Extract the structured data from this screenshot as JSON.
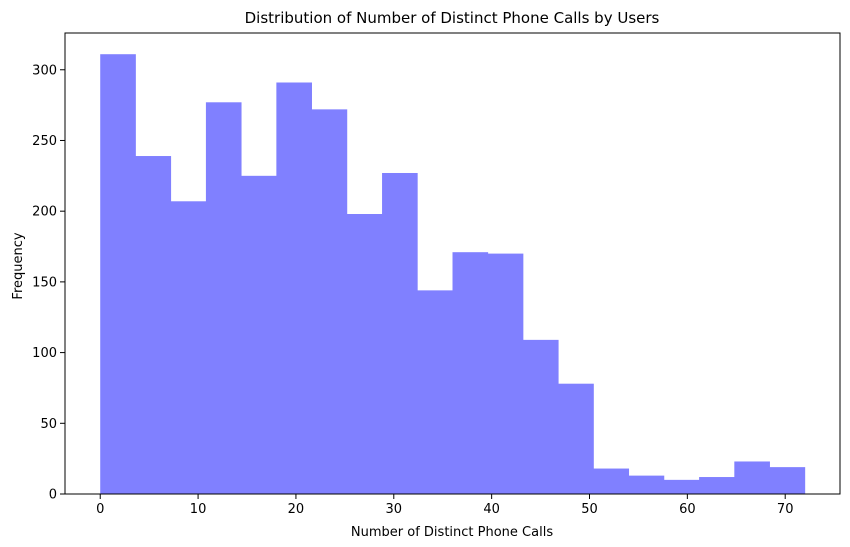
{
  "chart_data": {
    "type": "bar",
    "title": "Distribution of Number of Distinct Phone Calls by Users",
    "xlabel": "Number of Distinct Phone Calls",
    "ylabel": "Frequency",
    "xlim": [
      -3.6,
      75.6
    ],
    "ylim": [
      0,
      326
    ],
    "xticks": [
      0,
      10,
      20,
      30,
      40,
      50,
      60,
      70
    ],
    "yticks": [
      0,
      50,
      100,
      150,
      200,
      250,
      300
    ],
    "bin_edges": [
      0,
      3.6,
      7.2,
      10.8,
      14.4,
      18,
      21.6,
      25.2,
      28.8,
      32.4,
      36,
      39.6,
      43.2,
      46.8,
      50.4,
      54,
      57.6,
      61.2,
      64.8,
      68.4,
      72
    ],
    "values": [
      311,
      239,
      207,
      277,
      225,
      291,
      272,
      198,
      227,
      144,
      171,
      170,
      109,
      78,
      18,
      13,
      10,
      12,
      23,
      19
    ],
    "bar_color": "#8080ff",
    "grid": false,
    "legend": "none"
  }
}
